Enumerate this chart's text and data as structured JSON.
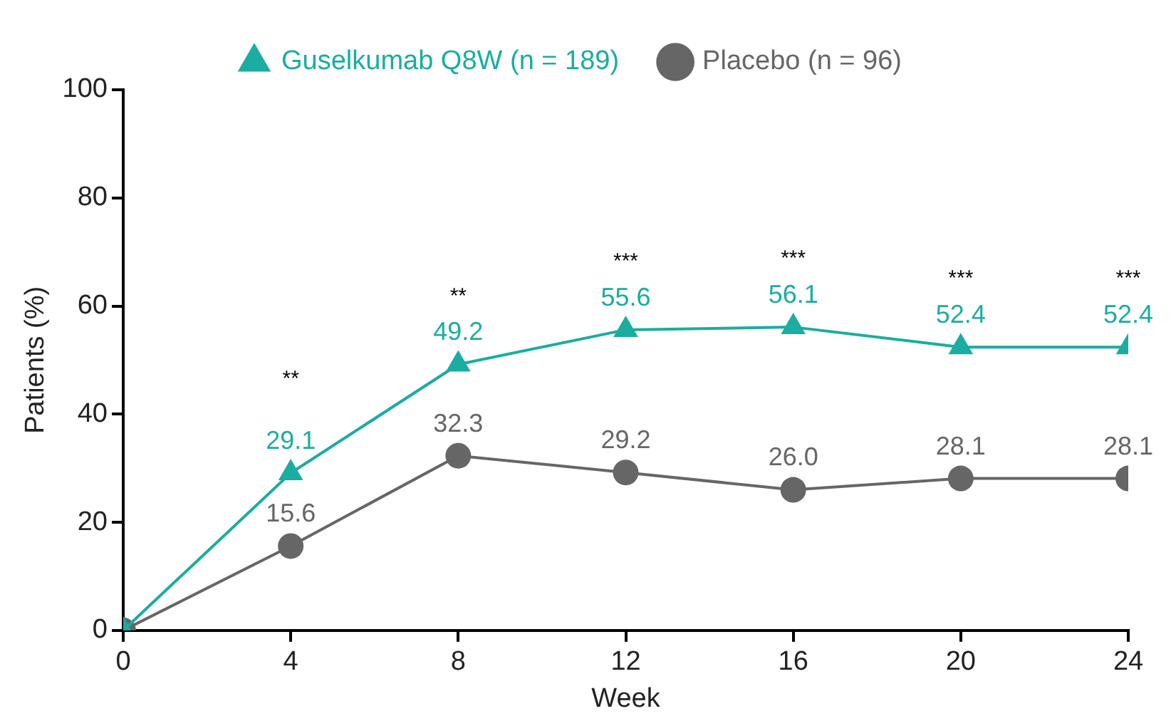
{
  "chart_data": {
    "type": "line",
    "xlabel": "Week",
    "ylabel": "Patients (%)",
    "x": [
      0,
      4,
      8,
      12,
      16,
      20,
      24
    ],
    "xlim": [
      0,
      24
    ],
    "xticks": [
      0,
      4,
      8,
      12,
      16,
      20,
      24
    ],
    "ylim": [
      0,
      100
    ],
    "yticks": [
      0,
      20,
      40,
      60,
      80,
      100
    ],
    "grid": false,
    "legend": "top",
    "series": [
      {
        "name": "Guselkumab Q8W (n = 189)",
        "color": "#1aada0",
        "marker": "triangle",
        "values": [
          0,
          29.1,
          49.2,
          55.6,
          56.1,
          52.4,
          52.4
        ],
        "value_labels": [
          null,
          "29.1",
          "49.2",
          "55.6",
          "56.1",
          "52.4",
          "52.4"
        ]
      },
      {
        "name": "Placebo (n = 96)",
        "color": "#666666",
        "marker": "circle",
        "values": [
          0,
          15.6,
          32.3,
          29.2,
          26.0,
          28.1,
          28.1
        ],
        "value_labels": [
          null,
          "15.6",
          "32.3",
          "29.2",
          "26.0",
          "28.1",
          "28.1"
        ]
      }
    ],
    "annotations": [
      "**",
      "**",
      "***",
      "***",
      "***",
      "***"
    ]
  }
}
